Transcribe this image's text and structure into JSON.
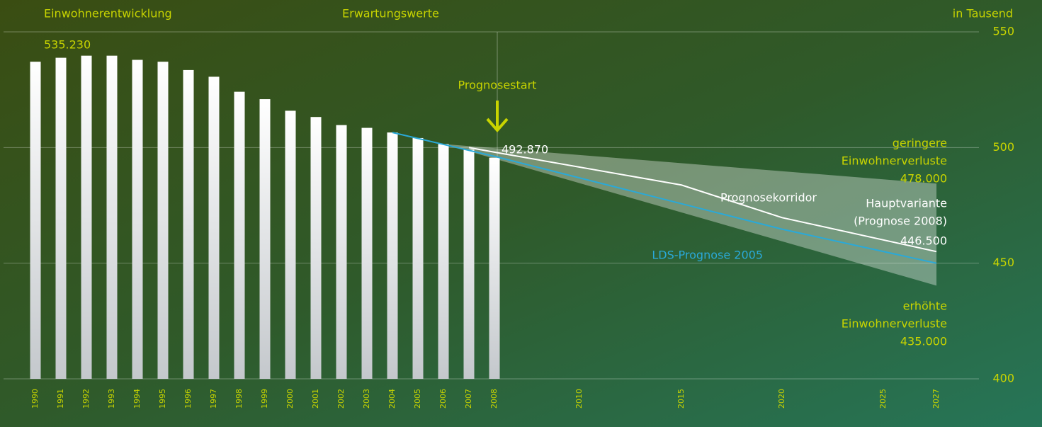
{
  "chart_data": {
    "type": "bar",
    "header_left": "Einwohnerentwicklung",
    "header_center": "Erwartungswerte",
    "y_unit": "in Tausend",
    "categories": [
      "1990",
      "1991",
      "1992",
      "1993",
      "1994",
      "1995",
      "1996",
      "1997",
      "1998",
      "1999",
      "2000",
      "2001",
      "2002",
      "2003",
      "2004",
      "2005",
      "2006",
      "2007",
      "2008",
      "2010",
      "2015",
      "2020",
      "2025",
      "2027"
    ],
    "values": [
      537.1,
      538.8,
      539.7,
      539.7,
      537.9,
      537.1,
      533.5,
      530.6,
      524.1,
      520.9,
      515.9,
      513.2,
      509.7,
      508.5,
      506.5,
      504.1,
      501.5,
      499.1,
      495.6,
      null,
      null,
      null,
      null,
      null
    ],
    "color": "#ffffff",
    "ylim": [
      400,
      550
    ],
    "yticks": [
      400,
      450,
      500,
      550
    ],
    "grid": true,
    "series": [
      {
        "name": "LDS-Prognose 2005",
        "color": "#2aa9d8",
        "x": [
          2004,
          2008,
          2020,
          2027
        ],
        "values": [
          506.5,
          496.2,
          464.7,
          450.0
        ]
      },
      {
        "name": "Hauptvariante",
        "color": "#ffffff",
        "x": [
          2007,
          2008,
          2015,
          2020,
          2027
        ],
        "values": [
          500.0,
          498.0,
          483.8,
          469.7,
          455.0
        ]
      }
    ],
    "corridor": {
      "x": [
        2006,
        2027
      ],
      "upper": [
        501.5,
        484.4
      ],
      "lower": [
        501.5,
        440.3
      ]
    },
    "annotations": [
      "535.230",
      "Prognosestart",
      "492.870",
      "geringere",
      "Einwohnerverluste",
      "478.000",
      "Prognosekorridor",
      "(Prognose 2008)",
      "446.500",
      "erhöhte",
      "Einwohnerverluste",
      "435.000"
    ]
  }
}
